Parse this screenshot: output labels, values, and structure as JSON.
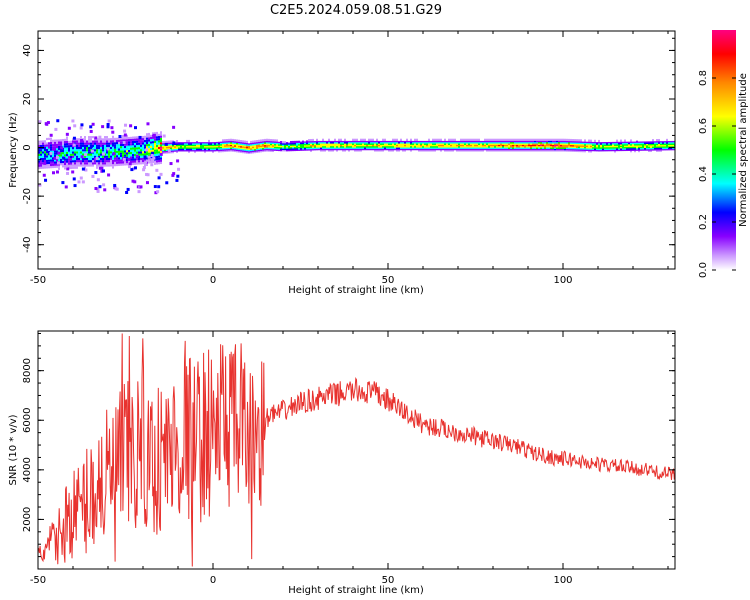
{
  "chart_data": [
    {
      "type": "heatmap",
      "title": "C2E5.2024.059.08.51.G29",
      "xlabel": "Height of straight line (km)",
      "ylabel": "Frequency (Hz)",
      "xlim": [
        -50,
        132
      ],
      "ylim": [
        -50,
        48
      ],
      "xticks": [
        -50,
        0,
        50,
        100
      ],
      "yticks": [
        -40,
        -20,
        0,
        20,
        40
      ],
      "colorbar": {
        "label": "Normalized spectral amplitude",
        "range": [
          0,
          1
        ],
        "ticks": [
          0.0,
          0.2,
          0.4,
          0.6,
          0.8
        ],
        "colormap": [
          "#ffffff",
          "#cc99ff",
          "#8800ff",
          "#0000ff",
          "#00ffff",
          "#00ff00",
          "#ffff00",
          "#ff8800",
          "#ff0000",
          "#ff0080"
        ]
      },
      "ridge": {
        "description_points_x": [
          -50,
          -40,
          -30,
          -20,
          -15,
          -10,
          0,
          5,
          10,
          15,
          20,
          30,
          50,
          70,
          90,
          100,
          110,
          132
        ],
        "frequency": [
          -3,
          -2,
          -2,
          -1,
          0,
          0.5,
          0.5,
          1,
          0,
          1,
          0.5,
          1,
          1,
          1,
          1,
          1,
          0.5,
          1
        ],
        "peak_amplitude": [
          0.45,
          0.5,
          0.5,
          0.55,
          0.9,
          0.7,
          0.7,
          0.9,
          0.85,
          0.9,
          0.6,
          0.75,
          0.75,
          0.8,
          0.9,
          0.95,
          0.7,
          0.7
        ]
      }
    },
    {
      "type": "line",
      "title": "",
      "xlabel": "Height of straight line (km)",
      "ylabel": "SNR (10 * v/v)",
      "xlim": [
        -50,
        132
      ],
      "ylim": [
        0,
        9600
      ],
      "xticks": [
        -50,
        0,
        50,
        100
      ],
      "yticks": [
        2000,
        4000,
        6000,
        8000
      ],
      "color": "#e8322e",
      "series": [
        {
          "x": [
            -50,
            -47,
            -44,
            -41,
            -38,
            -35,
            -32,
            -29,
            -26,
            -23,
            -20,
            -17,
            -14,
            -11,
            -8,
            -5,
            -2,
            1,
            4,
            7,
            10,
            13,
            16,
            19,
            22,
            25,
            28,
            31,
            34,
            37,
            40,
            43,
            46,
            49,
            52,
            55,
            58,
            61,
            64,
            67,
            70,
            73,
            76,
            79,
            82,
            85,
            88,
            91,
            94,
            97,
            100,
            103,
            106,
            109,
            112,
            115,
            118,
            121,
            124,
            127,
            130,
            132
          ],
          "values": [
            500,
            900,
            1300,
            2200,
            2400,
            3000,
            3500,
            3700,
            4200,
            4500,
            4700,
            4300,
            4600,
            4900,
            5300,
            5200,
            5500,
            5700,
            6100,
            5600,
            5200,
            5500,
            6200,
            6300,
            6500,
            6700,
            6800,
            6900,
            7000,
            7100,
            7200,
            7150,
            7100,
            6900,
            6600,
            6300,
            6000,
            5800,
            5700,
            5600,
            5500,
            5400,
            5300,
            5200,
            5100,
            5000,
            4900,
            4700,
            4600,
            4500,
            4450,
            4400,
            4300,
            4250,
            4200,
            4150,
            4100,
            4050,
            4000,
            3900,
            3850,
            3800
          ],
          "spikes": [
            {
              "x": -26,
              "y": 9500
            },
            {
              "x": -24,
              "y": 9400
            },
            {
              "x": -20,
              "y": 9300
            },
            {
              "x": -8,
              "y": 9200
            },
            {
              "x": 8,
              "y": 9100
            },
            {
              "x": -28,
              "y": 300
            },
            {
              "x": -6,
              "y": 100
            },
            {
              "x": 11,
              "y": 400
            }
          ]
        }
      ]
    }
  ]
}
